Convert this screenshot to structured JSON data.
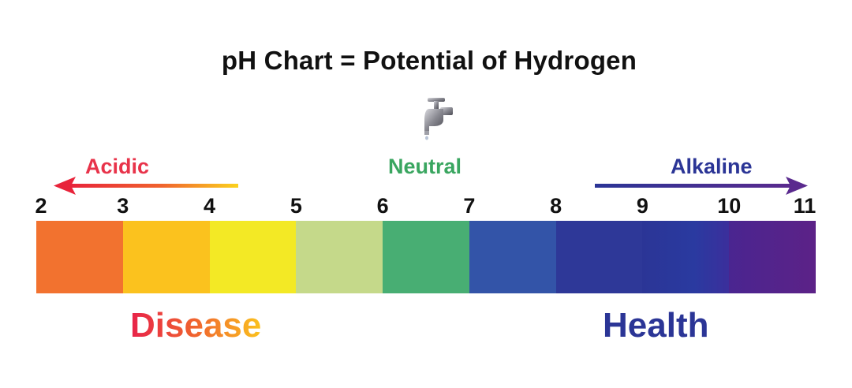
{
  "title": "pH Chart = Potential of Hydrogen",
  "icons": {
    "faucet": "faucet-icon"
  },
  "zones": {
    "acidic": "Acidic",
    "neutral": "Neutral",
    "alkaline": "Alkaline"
  },
  "scale": {
    "ticks": [
      "2",
      "3",
      "4",
      "5",
      "6",
      "7",
      "8",
      "9",
      "10",
      "11"
    ],
    "segments": [
      {
        "from": 2,
        "to": 3,
        "color": "#f2722f"
      },
      {
        "from": 3,
        "to": 4,
        "color": "#fbc21e"
      },
      {
        "from": 4,
        "to": 5,
        "color": "#f3e925"
      },
      {
        "from": 5,
        "to": 6,
        "color": "#c5d98a"
      },
      {
        "from": 6,
        "to": 7,
        "color": "#48ae73"
      },
      {
        "from": 7,
        "to": 8,
        "color": "#3354a8"
      },
      {
        "from": 8,
        "to": 9,
        "color": "#2e3898"
      },
      {
        "from": 9,
        "to": 10,
        "color": "linear-gradient(90deg, #2b3596 0%, #2a3aa0 60%, #3b2f9c 100%)"
      },
      {
        "from": 10,
        "to": 11,
        "color": "linear-gradient(90deg, #4a2590 0%, #5c2287 100%)"
      }
    ]
  },
  "outcomes": {
    "disease": "Disease",
    "health": "Health"
  },
  "colors": {
    "acidic": "#e8334a",
    "neutral": "#3aa660",
    "alkaline": "#2b3596",
    "alkaline_arrow_end": "#5a2a8e"
  }
}
